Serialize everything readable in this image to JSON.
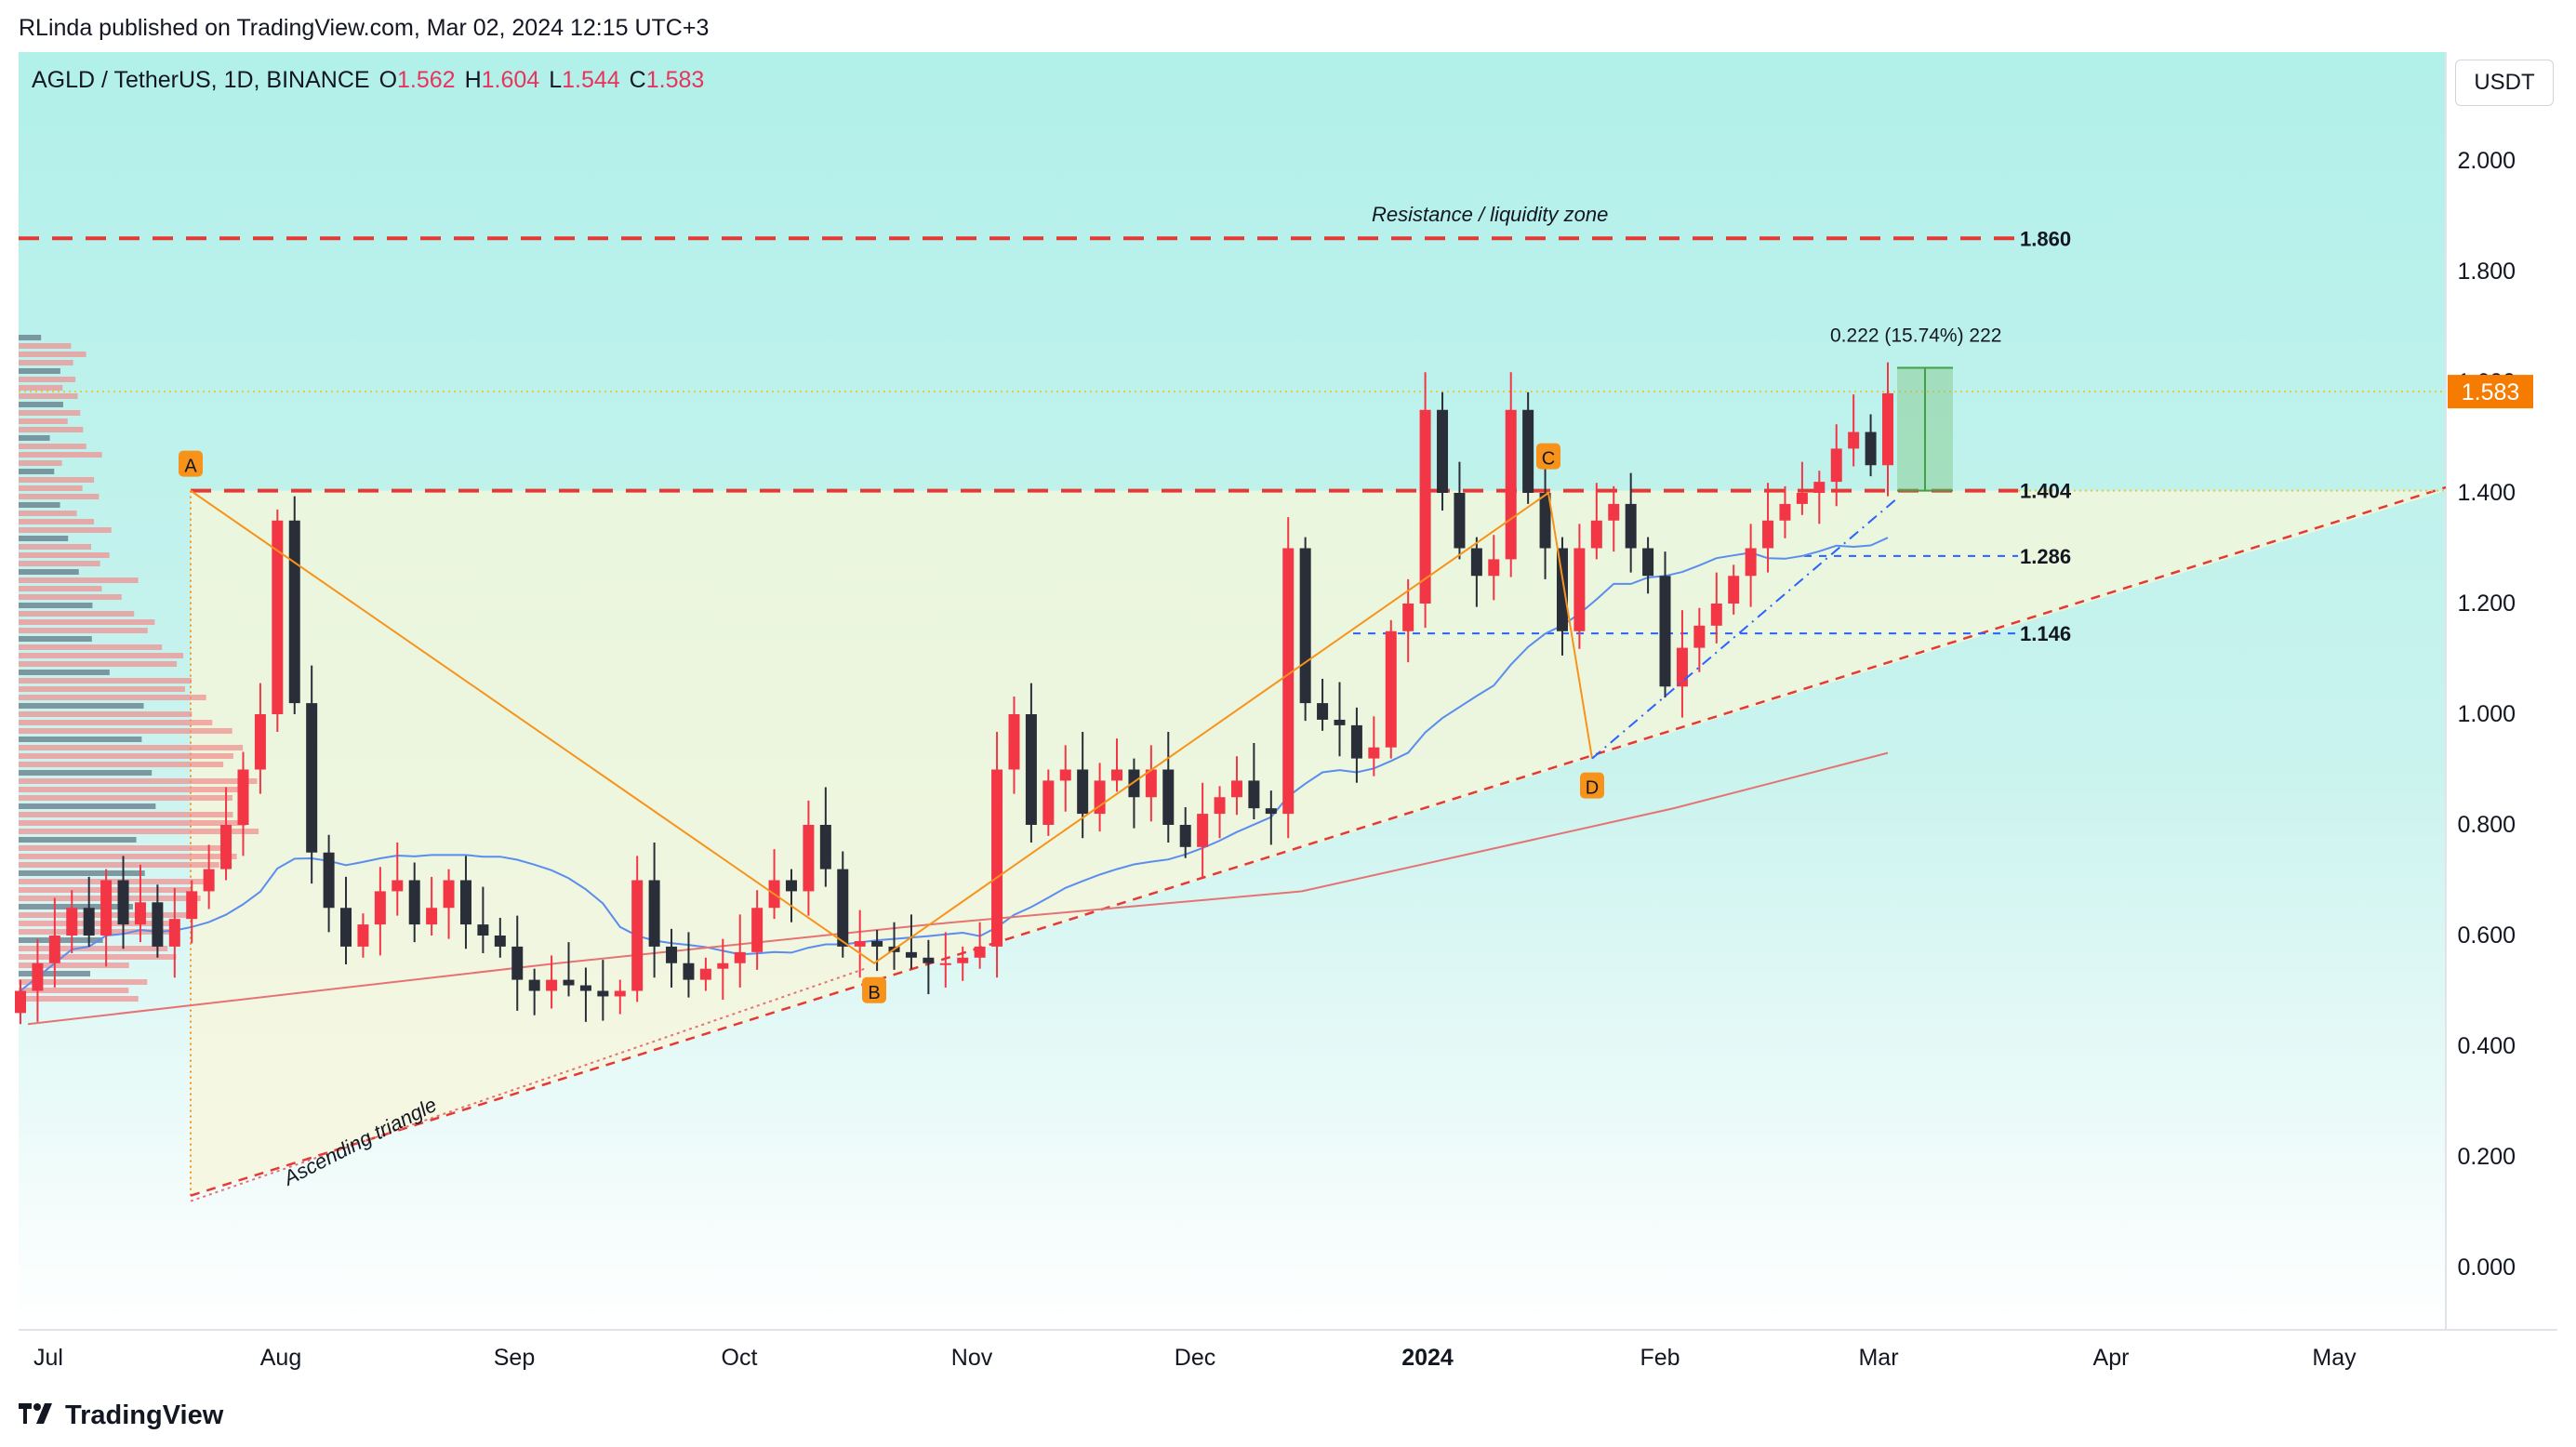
{
  "header": {
    "publisher": "RLinda published on TradingView.com, Mar 02, 2024 12:15 UTC+3"
  },
  "legend": {
    "symbol": "AGLD / TetherUS, 1D, BINANCE",
    "open_label": "O",
    "open": "1.562",
    "high_label": "H",
    "high": "1.604",
    "low_label": "L",
    "low": "1.544",
    "close_label": "C",
    "close": "1.583"
  },
  "currency_button": "USDT",
  "footer": {
    "brand": "TradingView"
  },
  "colors": {
    "background_top": "#b2f0ea",
    "background_bottom": "#ffffff",
    "bull_candle": "#f23645",
    "bear_candle": "#2a2e39",
    "resistance_line": "#e53935",
    "ma_blue": "#5b8def",
    "ma_red": "#e57373",
    "accent_orange": "#f7931a",
    "price_tag": "#f57c00"
  },
  "chart_data": {
    "type": "candlestick",
    "y_axis": {
      "min": -0.1,
      "max": 2.2,
      "ticks": [
        "0.000",
        "0.200",
        "0.400",
        "0.600",
        "0.800",
        "1.000",
        "1.200",
        "1.400",
        "1.600",
        "1.800",
        "2.000"
      ]
    },
    "x_axis": {
      "labels": [
        "Jul",
        "Aug",
        "Sep",
        "Oct",
        "Nov",
        "Dec",
        "2024",
        "Feb",
        "Mar",
        "Apr",
        "May"
      ]
    },
    "last_price": "1.583",
    "levels": [
      {
        "value": 1.86,
        "label": "1.860",
        "style": "red-dashed"
      },
      {
        "value": 1.404,
        "label": "1.404",
        "style": "red-dashed"
      },
      {
        "value": 1.286,
        "label": "1.286",
        "style": "blue-dashed"
      },
      {
        "value": 1.146,
        "label": "1.146",
        "style": "blue-dashed"
      }
    ],
    "annotations": {
      "resistance_zone": "Resistance / liquidity zone",
      "triangle": "Ascending triangle",
      "measure": "0.222 (15.74%) 222",
      "points": [
        "A",
        "B",
        "C",
        "D"
      ]
    },
    "closes": [
      0.5,
      0.55,
      0.6,
      0.65,
      0.6,
      0.7,
      0.62,
      0.66,
      0.58,
      0.63,
      0.68,
      0.72,
      0.8,
      0.9,
      1.0,
      1.35,
      1.02,
      0.75,
      0.65,
      0.58,
      0.62,
      0.68,
      0.7,
      0.62,
      0.65,
      0.7,
      0.62,
      0.6,
      0.58,
      0.52,
      0.5,
      0.52,
      0.51,
      0.5,
      0.49,
      0.5,
      0.7,
      0.58,
      0.55,
      0.52,
      0.54,
      0.55,
      0.57,
      0.65,
      0.7,
      0.68,
      0.8,
      0.72,
      0.58,
      0.59,
      0.58,
      0.57,
      0.56,
      0.55,
      0.55,
      0.56,
      0.58,
      0.9,
      1.0,
      0.8,
      0.88,
      0.9,
      0.82,
      0.88,
      0.9,
      0.85,
      0.9,
      0.8,
      0.76,
      0.82,
      0.85,
      0.88,
      0.83,
      0.82,
      1.3,
      1.02,
      0.99,
      0.98,
      0.92,
      0.94,
      1.15,
      1.2,
      1.55,
      1.4,
      1.3,
      1.25,
      1.28,
      1.55,
      1.4,
      1.3,
      1.15,
      1.3,
      1.35,
      1.38,
      1.3,
      1.25,
      1.05,
      1.12,
      1.16,
      1.2,
      1.25,
      1.3,
      1.35,
      1.38,
      1.4,
      1.42,
      1.48,
      1.51,
      1.45,
      1.58
    ]
  }
}
